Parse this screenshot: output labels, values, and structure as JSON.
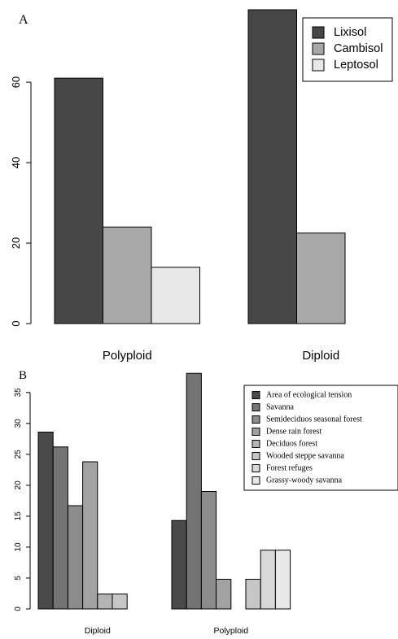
{
  "chart_data": [
    {
      "panel_label": "A",
      "type": "bar",
      "layout": "grouped",
      "categories": [
        "Polyploid",
        "Diploid"
      ],
      "series": [
        {
          "name": "Lixisol",
          "values": [
            61,
            78
          ],
          "color": "#474747"
        },
        {
          "name": "Cambisol",
          "values": [
            24,
            22.5
          ],
          "color": "#a8a8a8"
        },
        {
          "name": "Leptosol",
          "values": [
            14,
            0
          ],
          "color": "#e8e8e8"
        }
      ],
      "yticks": [
        0,
        20,
        40,
        60
      ],
      "ylim": [
        0,
        78
      ],
      "legend_position": "top-right"
    },
    {
      "panel_label": "B",
      "type": "bar",
      "layout": "grouped",
      "categories": [
        "Diploid",
        "Polyploid"
      ],
      "series": [
        {
          "name": "Area of ecological tension",
          "values": [
            28.6,
            14.3
          ],
          "color": "#4a4a4a"
        },
        {
          "name": "Savanna",
          "values": [
            26.2,
            38.1
          ],
          "color": "#747474"
        },
        {
          "name": "Semideciduos seasonal forest",
          "values": [
            16.7,
            19.0
          ],
          "color": "#8c8c8c"
        },
        {
          "name": "Dense rain forest",
          "values": [
            23.8,
            4.8
          ],
          "color": "#a2a2a2"
        },
        {
          "name": "Deciduos forest",
          "values": [
            2.4,
            0
          ],
          "color": "#b4b4b4"
        },
        {
          "name": "Wooded steppe savanna",
          "values": [
            2.4,
            4.8
          ],
          "color": "#c6c6c6"
        },
        {
          "name": "Forest refuges",
          "values": [
            0,
            9.5
          ],
          "color": "#d8d8d8"
        },
        {
          "name": "Grassy-woody savanna",
          "values": [
            0,
            9.5
          ],
          "color": "#e8e8e8"
        }
      ],
      "yticks": [
        0,
        5,
        10,
        15,
        20,
        25,
        30,
        35
      ],
      "ylim": [
        0,
        38
      ],
      "legend_position": "top-right"
    }
  ]
}
